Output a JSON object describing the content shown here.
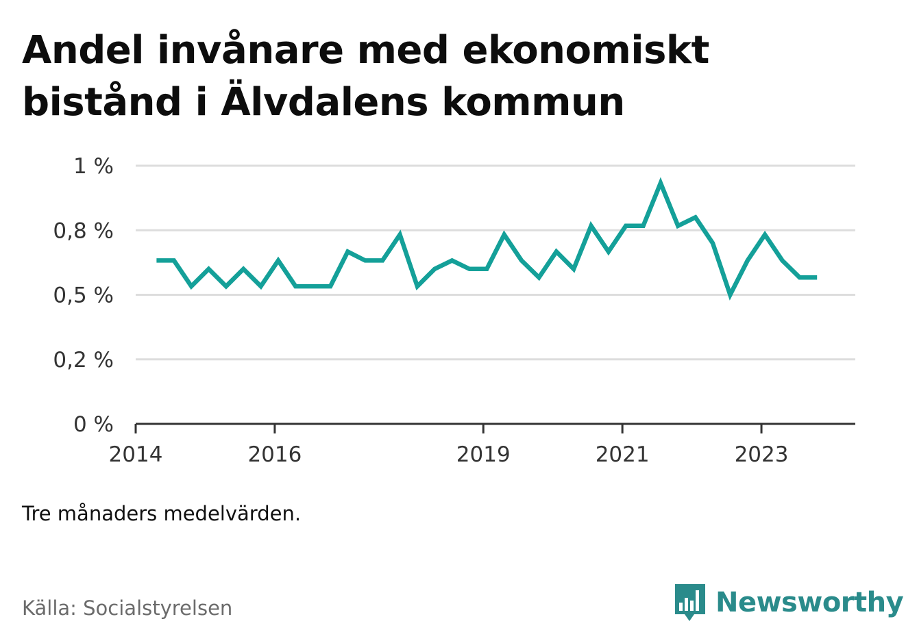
{
  "title_lines": [
    "Andel invånare med ekonomiskt",
    "bistånd i Älvdalens kommun"
  ],
  "note": "Tre månaders medelvärden.",
  "source": "Källa: Socialstyrelsen",
  "brand": {
    "name": "Newsworthy",
    "icon": "bar-chart-speech-bubble-icon",
    "color": "#2a8b8b"
  },
  "colors": {
    "line": "#14a099",
    "grid": "#dddddd",
    "axis": "#333333",
    "tick_text": "#333333"
  },
  "chart_data": {
    "type": "line",
    "title": "Andel invånare med ekonomiskt bistånd i Älvdalens kommun",
    "xlabel": "",
    "ylabel": "",
    "ylim": [
      0,
      1.0
    ],
    "xlim": [
      2014.0,
      2024.35
    ],
    "grid": true,
    "legend": "none",
    "y_ticks": [
      {
        "value": 0,
        "label": "0 %"
      },
      {
        "value": 0.25,
        "label": "0,2 %"
      },
      {
        "value": 0.5,
        "label": "0,5 %"
      },
      {
        "value": 0.75,
        "label": "0,8 %"
      },
      {
        "value": 1.0,
        "label": "1 %"
      }
    ],
    "x_ticks": [
      {
        "value": 2014,
        "label": "2014"
      },
      {
        "value": 2016,
        "label": "2016"
      },
      {
        "value": 2019,
        "label": "2019"
      },
      {
        "value": 2021,
        "label": "2021"
      },
      {
        "value": 2023,
        "label": "2023"
      }
    ],
    "series": [
      {
        "x": [
          2014.3,
          2014.55,
          2014.8,
          2015.05,
          2015.3,
          2015.55,
          2015.8,
          2016.05,
          2016.3,
          2016.55,
          2016.8,
          2017.05,
          2017.3,
          2017.55,
          2017.8,
          2018.05,
          2018.3,
          2018.55,
          2018.8,
          2019.05,
          2019.3,
          2019.55,
          2019.8,
          2020.05,
          2020.3,
          2020.55,
          2020.8,
          2021.05,
          2021.3,
          2021.55,
          2021.8,
          2022.05,
          2022.3,
          2022.55,
          2022.8,
          2023.05,
          2023.3,
          2023.55,
          2023.8
        ],
        "values": [
          0.633,
          0.633,
          0.533,
          0.6,
          0.533,
          0.6,
          0.533,
          0.633,
          0.533,
          0.533,
          0.533,
          0.667,
          0.633,
          0.633,
          0.733,
          0.533,
          0.6,
          0.633,
          0.6,
          0.6,
          0.733,
          0.633,
          0.567,
          0.667,
          0.6,
          0.767,
          0.667,
          0.767,
          0.767,
          0.933,
          0.767,
          0.8,
          0.7,
          0.5,
          0.633,
          0.733,
          0.633,
          0.567,
          0.567
        ]
      }
    ]
  }
}
